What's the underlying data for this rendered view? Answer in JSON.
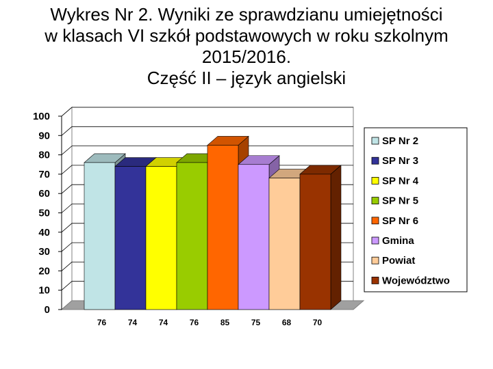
{
  "chart_data": {
    "type": "bar",
    "title_lines": [
      "Wykres Nr 2. Wyniki ze sprawdzianu umiejętności",
      "w klasach VI szkół podstawowych w roku szkolnym",
      "2015/2016.",
      "Część II – język angielski"
    ],
    "categories": [
      "SP Nr 2",
      "SP Nr 3",
      "SP Nr 4",
      "SP Nr 5",
      "SP Nr 6",
      "Gmina",
      "Powiat",
      "Województwo"
    ],
    "values": [
      76,
      74,
      74,
      76,
      85,
      75,
      68,
      70
    ],
    "data_labels": [
      "76",
      "74",
      "74",
      "76",
      "85",
      "75",
      "68",
      "70"
    ],
    "colors": [
      "#c0e4e6",
      "#333399",
      "#ffff00",
      "#99cc00",
      "#ff6600",
      "#cc99ff",
      "#ffcc99",
      "#993300"
    ],
    "ylim": [
      0,
      100
    ],
    "yticks": [
      "0",
      "10",
      "20",
      "30",
      "40",
      "50",
      "60",
      "70",
      "80",
      "90",
      "100"
    ],
    "grid": true,
    "legend": "right",
    "xlabel": "",
    "ylabel": ""
  }
}
